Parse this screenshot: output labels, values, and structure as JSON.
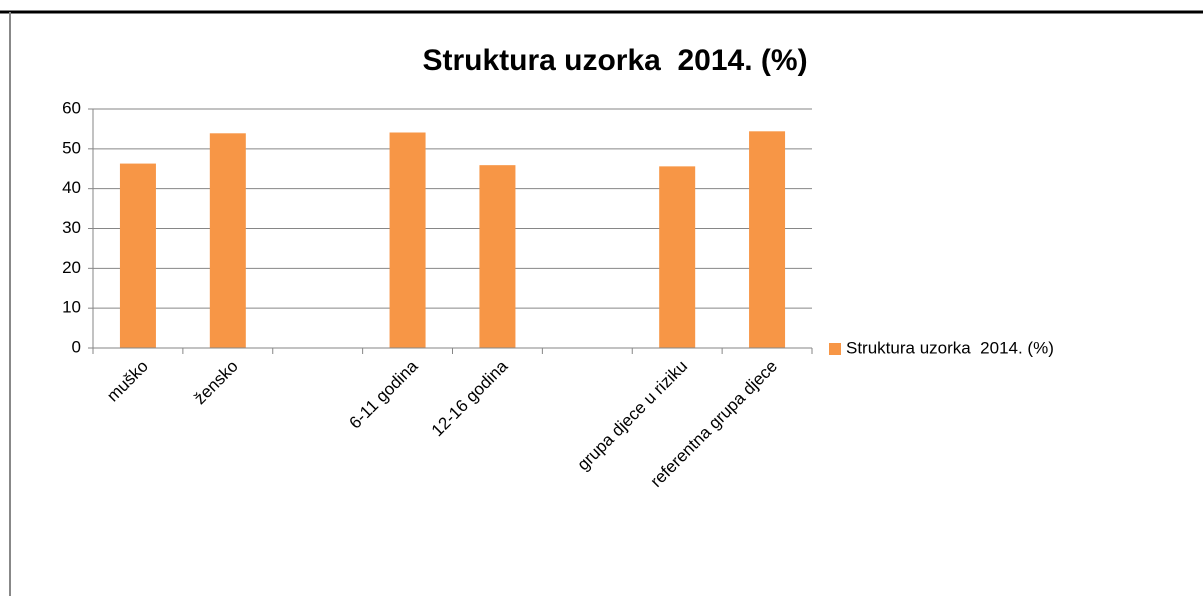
{
  "chart_data": {
    "type": "bar",
    "title": "Struktura uzorka  2014. (%)",
    "categories": [
      "muško",
      "žensko",
      null,
      "6-11 godina",
      "12-16 godina",
      null,
      "grupa djece u riziku",
      "referentna grupa djece"
    ],
    "series": [
      {
        "name": "Struktura uzorka  2014. (%)",
        "color": "#f79646",
        "values": [
          46.3,
          53.9,
          null,
          54.1,
          45.9,
          null,
          45.6,
          54.4
        ]
      }
    ],
    "ylim": [
      0,
      60
    ],
    "yticks": [
      0,
      10,
      20,
      30,
      40,
      50,
      60
    ],
    "grid": true,
    "legend": "right"
  }
}
